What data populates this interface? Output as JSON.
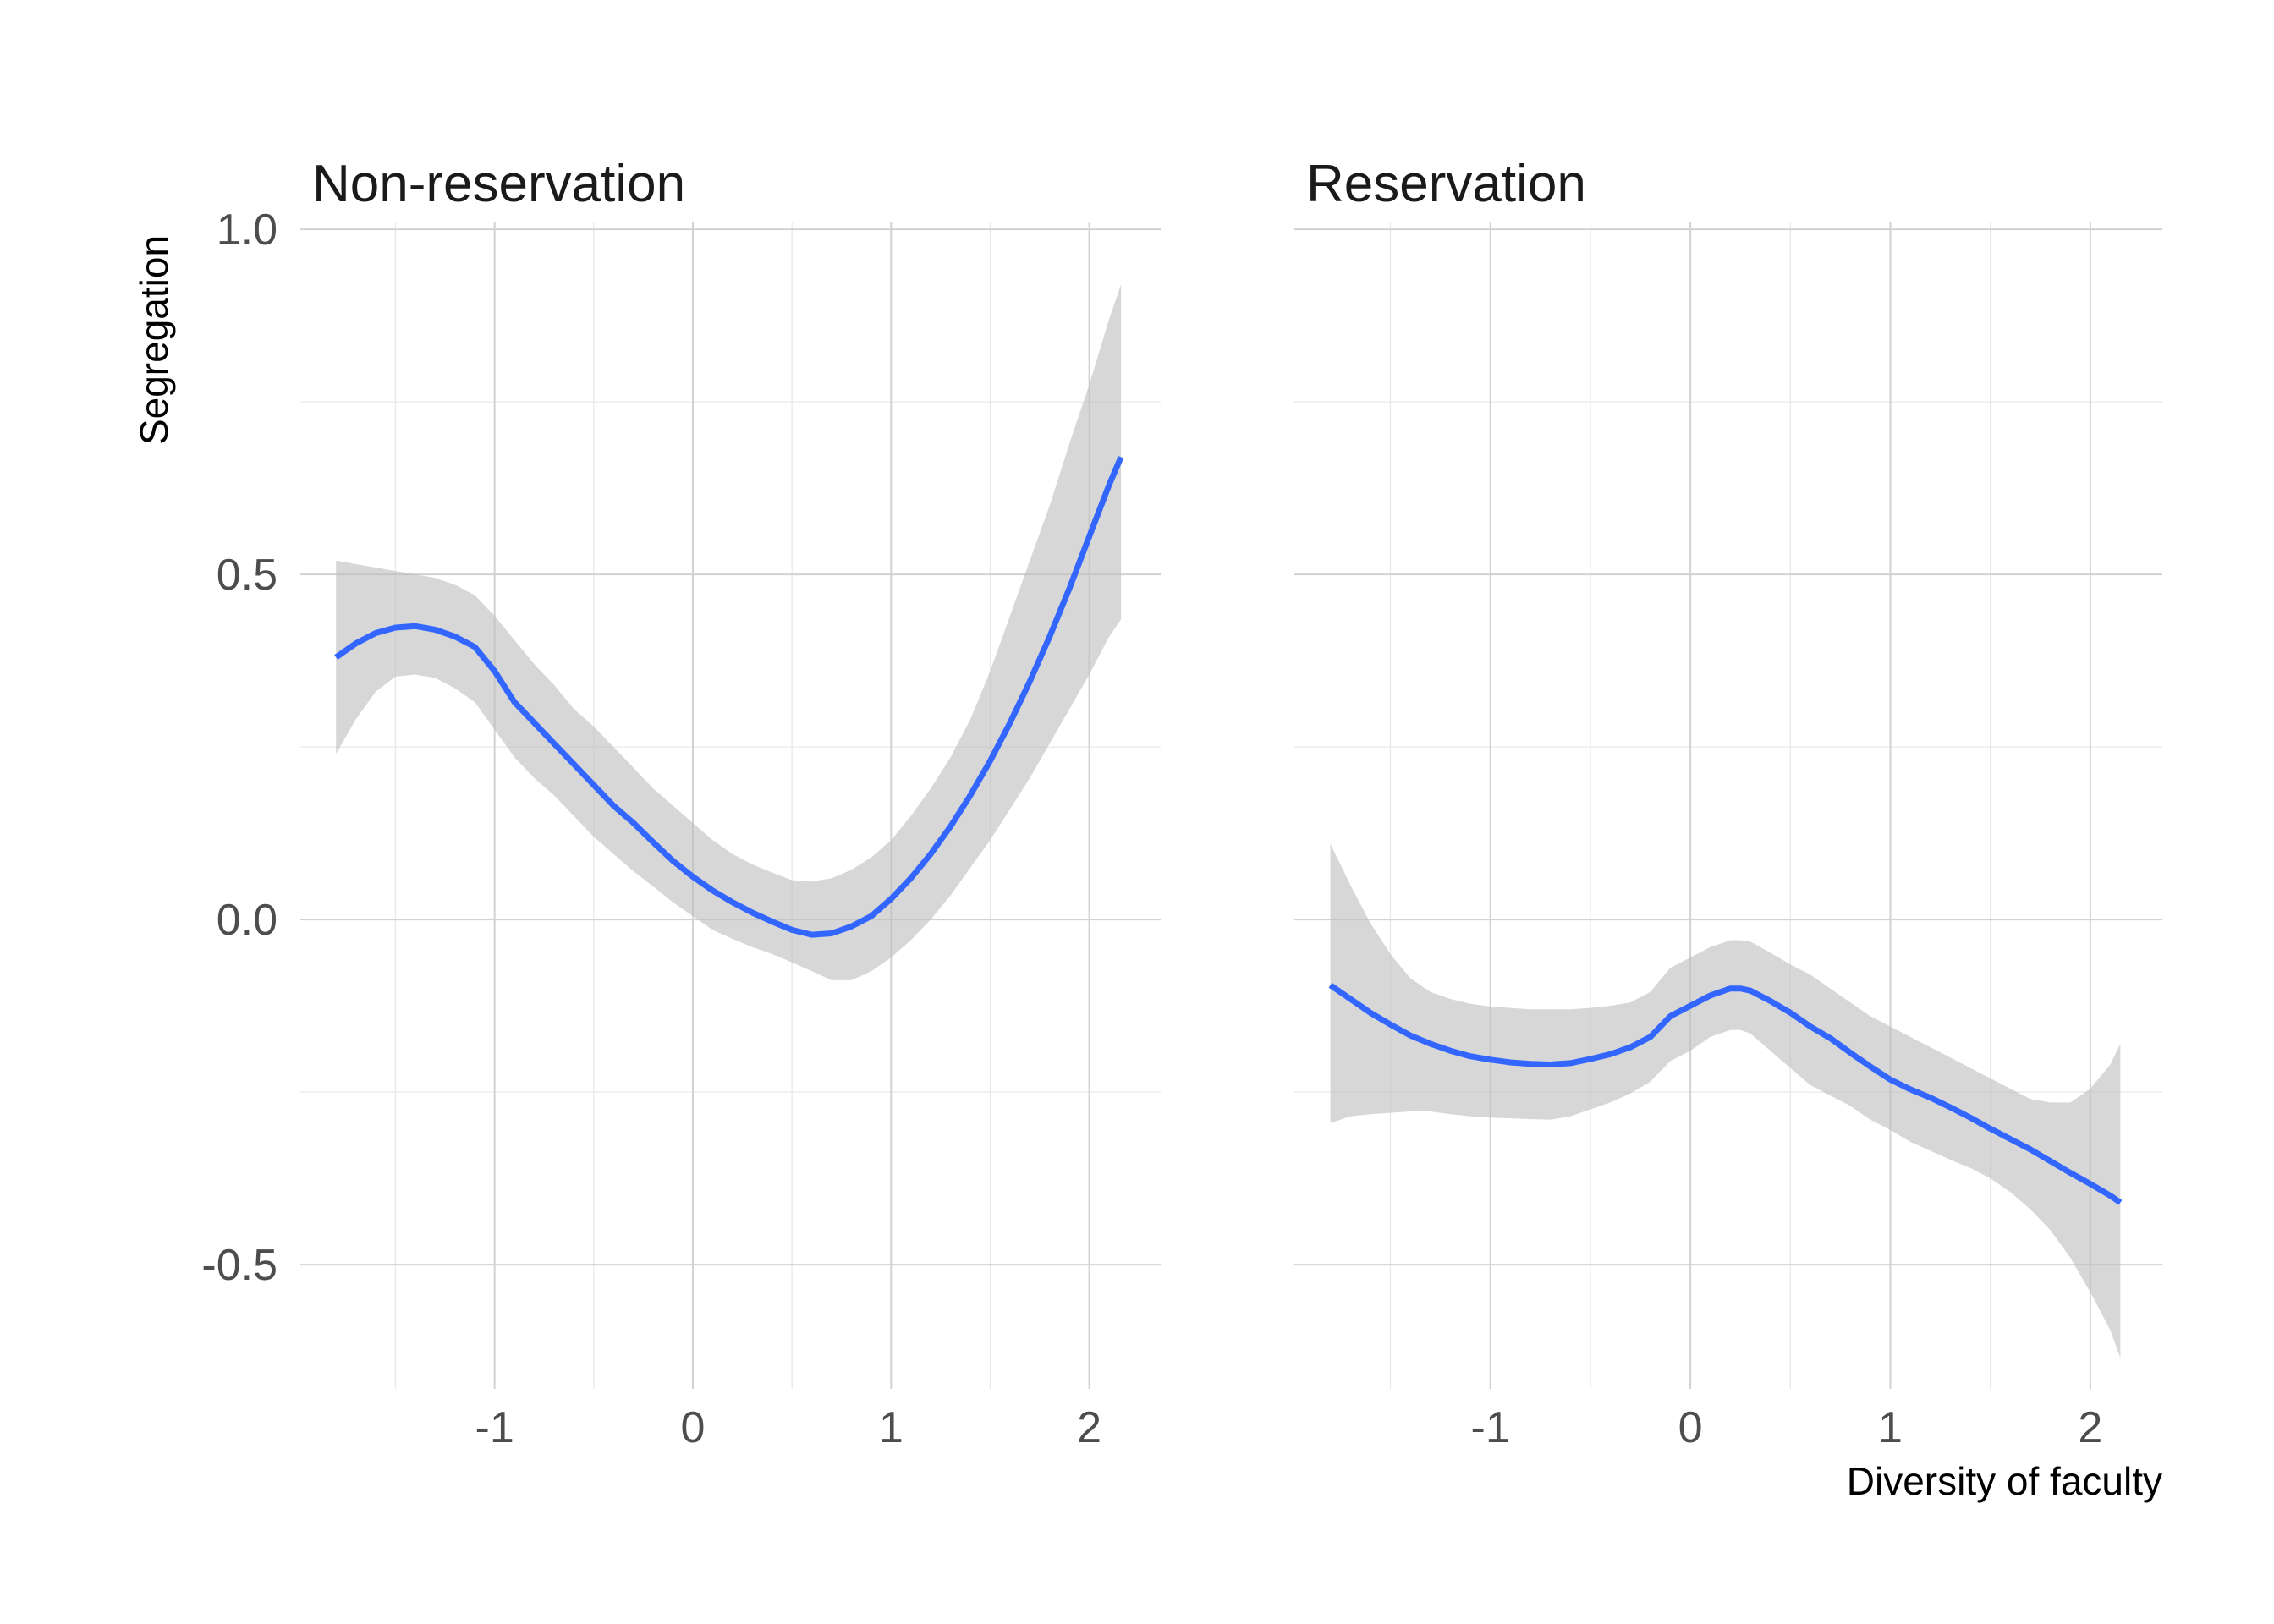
{
  "chart_data": {
    "type": "line",
    "ylabel": "Segregation",
    "xlabel": "Diversity of faculty",
    "ylim": [
      -0.68,
      1.01
    ],
    "xlim": [
      -1.98,
      2.36
    ],
    "y_ticks": [
      -0.5,
      0.0,
      0.5,
      1.0
    ],
    "y_tick_labels": [
      "-0.5",
      "0.0",
      "0.5",
      "1.0"
    ],
    "x_ticks": [
      -1,
      0,
      1,
      2
    ],
    "x_tick_labels": [
      "-1",
      "0",
      "1",
      "2"
    ],
    "grid": true,
    "colors": {
      "line": "#3366ff",
      "band": "#bfbfbf"
    },
    "panels": [
      {
        "title": "Non-reservation",
        "x": [
          -1.8,
          -1.7,
          -1.6,
          -1.5,
          -1.4,
          -1.3,
          -1.2,
          -1.1,
          -1.0,
          -0.9,
          -0.8,
          -0.7,
          -0.6,
          -0.5,
          -0.4,
          -0.3,
          -0.2,
          -0.1,
          0.0,
          0.1,
          0.2,
          0.3,
          0.4,
          0.5,
          0.6,
          0.7,
          0.8,
          0.9,
          1.0,
          1.1,
          1.2,
          1.3,
          1.4,
          1.5,
          1.6,
          1.7,
          1.8,
          1.9,
          2.0,
          2.1,
          2.16
        ],
        "fit": [
          0.38,
          0.4,
          0.415,
          0.423,
          0.425,
          0.42,
          0.41,
          0.395,
          0.36,
          0.315,
          0.285,
          0.255,
          0.225,
          0.195,
          0.165,
          0.14,
          0.112,
          0.085,
          0.062,
          0.042,
          0.025,
          0.01,
          -0.003,
          -0.015,
          -0.022,
          -0.02,
          -0.01,
          0.005,
          0.03,
          0.06,
          0.095,
          0.135,
          0.18,
          0.23,
          0.285,
          0.345,
          0.41,
          0.48,
          0.555,
          0.63,
          0.67
        ],
        "lower": [
          0.24,
          0.29,
          0.33,
          0.352,
          0.355,
          0.35,
          0.335,
          0.315,
          0.275,
          0.235,
          0.205,
          0.18,
          0.15,
          0.12,
          0.095,
          0.07,
          0.048,
          0.025,
          0.005,
          -0.015,
          -0.028,
          -0.04,
          -0.05,
          -0.062,
          -0.075,
          -0.088,
          -0.088,
          -0.075,
          -0.055,
          -0.03,
          0.0,
          0.035,
          0.075,
          0.115,
          0.16,
          0.205,
          0.255,
          0.305,
          0.355,
          0.41,
          0.435
        ],
        "upper": [
          0.52,
          0.515,
          0.51,
          0.505,
          0.5,
          0.495,
          0.485,
          0.47,
          0.44,
          0.405,
          0.37,
          0.34,
          0.305,
          0.28,
          0.25,
          0.22,
          0.19,
          0.165,
          0.14,
          0.115,
          0.095,
          0.08,
          0.068,
          0.057,
          0.055,
          0.06,
          0.072,
          0.09,
          0.115,
          0.15,
          0.19,
          0.235,
          0.29,
          0.36,
          0.44,
          0.52,
          0.6,
          0.69,
          0.775,
          0.87,
          0.92
        ]
      },
      {
        "title": "Reservation",
        "x": [
          -1.8,
          -1.7,
          -1.6,
          -1.5,
          -1.4,
          -1.3,
          -1.2,
          -1.1,
          -1.0,
          -0.9,
          -0.8,
          -0.7,
          -0.6,
          -0.5,
          -0.4,
          -0.3,
          -0.2,
          -0.1,
          0.0,
          0.1,
          0.2,
          0.25,
          0.3,
          0.4,
          0.5,
          0.6,
          0.7,
          0.8,
          0.9,
          1.0,
          1.1,
          1.2,
          1.3,
          1.4,
          1.5,
          1.6,
          1.7,
          1.8,
          1.9,
          2.0,
          2.1,
          2.15
        ],
        "fit": [
          -0.095,
          -0.115,
          -0.135,
          -0.152,
          -0.168,
          -0.18,
          -0.19,
          -0.198,
          -0.203,
          -0.207,
          -0.209,
          -0.21,
          -0.208,
          -0.202,
          -0.195,
          -0.185,
          -0.17,
          -0.14,
          -0.125,
          -0.11,
          -0.1,
          -0.1,
          -0.103,
          -0.118,
          -0.135,
          -0.155,
          -0.172,
          -0.193,
          -0.213,
          -0.232,
          -0.246,
          -0.258,
          -0.272,
          -0.287,
          -0.303,
          -0.318,
          -0.333,
          -0.35,
          -0.367,
          -0.383,
          -0.4,
          -0.41
        ],
        "lower": [
          -0.295,
          -0.285,
          -0.282,
          -0.28,
          -0.278,
          -0.278,
          -0.282,
          -0.285,
          -0.287,
          -0.288,
          -0.289,
          -0.29,
          -0.285,
          -0.275,
          -0.265,
          -0.252,
          -0.235,
          -0.205,
          -0.19,
          -0.17,
          -0.16,
          -0.16,
          -0.165,
          -0.19,
          -0.215,
          -0.24,
          -0.255,
          -0.27,
          -0.29,
          -0.305,
          -0.322,
          -0.335,
          -0.348,
          -0.36,
          -0.375,
          -0.395,
          -0.42,
          -0.45,
          -0.49,
          -0.54,
          -0.595,
          -0.635
        ],
        "upper": [
          0.11,
          0.05,
          -0.005,
          -0.05,
          -0.085,
          -0.105,
          -0.115,
          -0.122,
          -0.126,
          -0.128,
          -0.13,
          -0.13,
          -0.13,
          -0.128,
          -0.125,
          -0.12,
          -0.105,
          -0.07,
          -0.055,
          -0.04,
          -0.03,
          -0.03,
          -0.032,
          -0.048,
          -0.065,
          -0.08,
          -0.1,
          -0.12,
          -0.14,
          -0.155,
          -0.17,
          -0.185,
          -0.2,
          -0.215,
          -0.23,
          -0.245,
          -0.26,
          -0.265,
          -0.265,
          -0.245,
          -0.21,
          -0.18
        ]
      }
    ]
  }
}
